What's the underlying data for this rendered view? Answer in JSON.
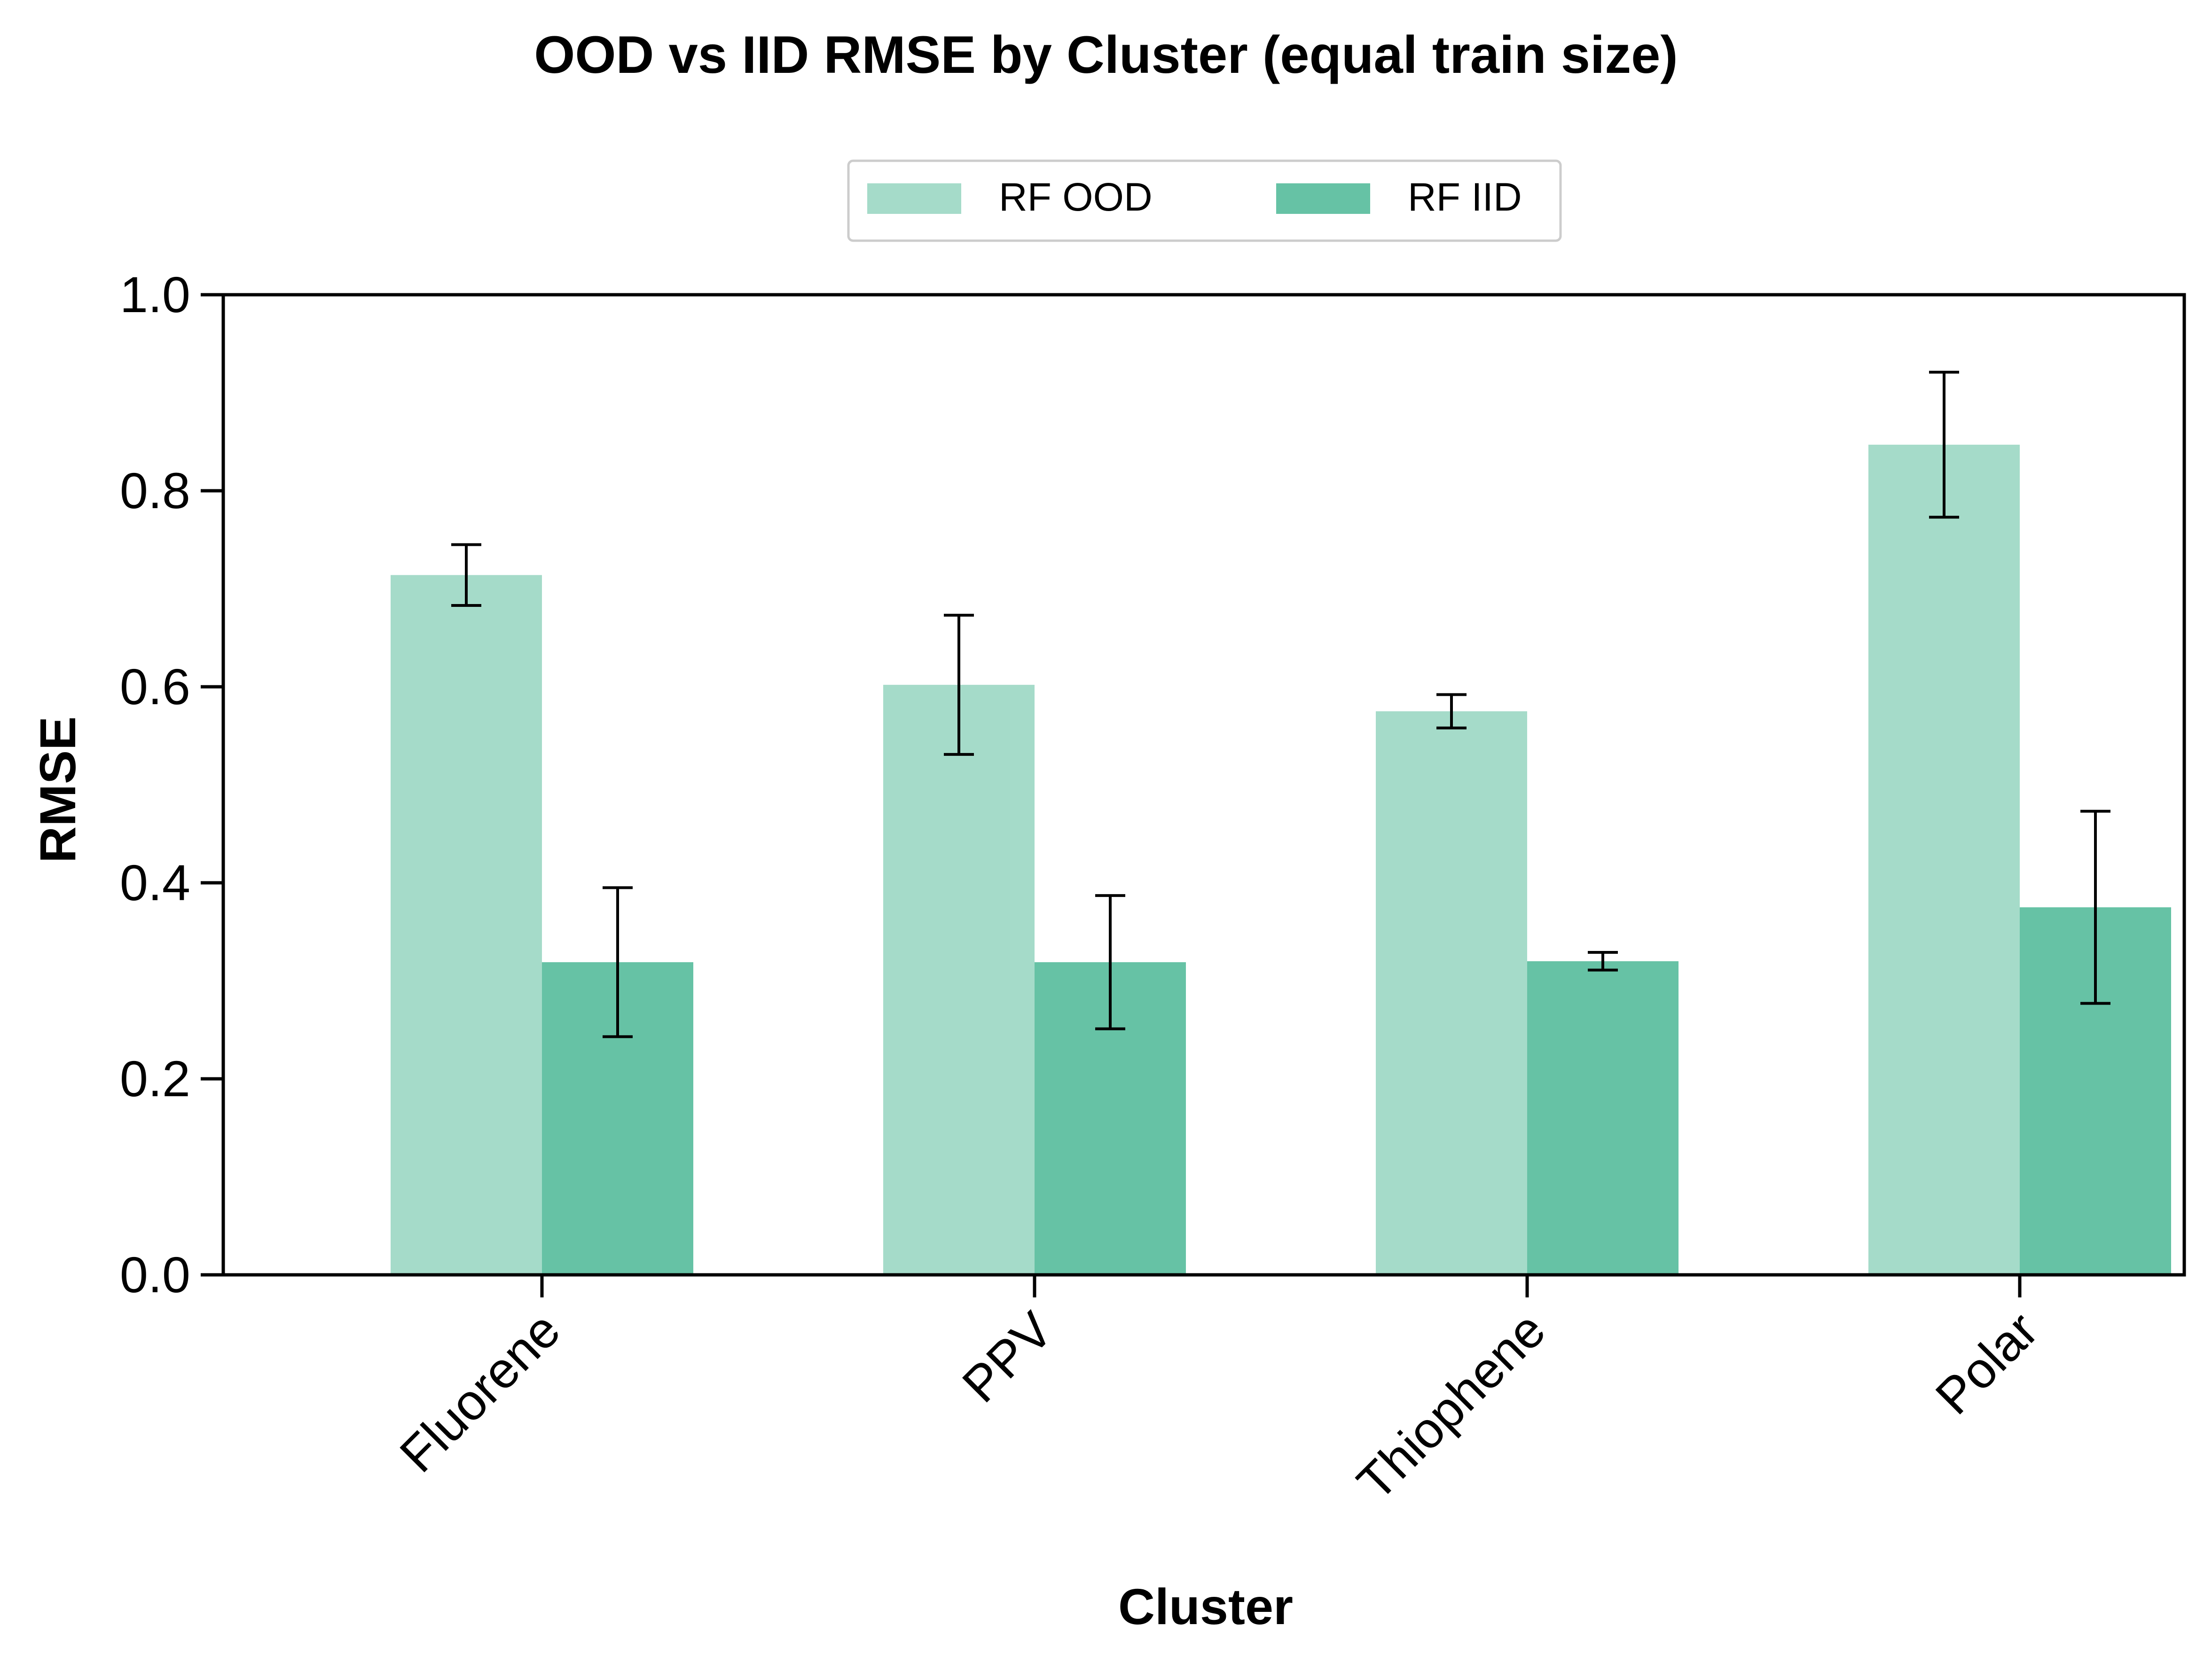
{
  "chart_data": {
    "type": "bar",
    "title": "OOD vs IID RMSE by Cluster (equal train size)",
    "xlabel": "Cluster",
    "ylabel": "RMSE",
    "categories": [
      "Fluorene",
      "PPV",
      "Thiophene",
      "Polar"
    ],
    "series": [
      {
        "name": "RF OOD",
        "color": "#a5dbc9",
        "values": [
          0.714,
          0.602,
          0.575,
          0.847
        ],
        "errors": [
          0.031,
          0.071,
          0.017,
          0.074
        ]
      },
      {
        "name": "RF IID",
        "color": "#66c2a5",
        "values": [
          0.319,
          0.319,
          0.32,
          0.375
        ],
        "errors": [
          0.076,
          0.068,
          0.009,
          0.098
        ]
      }
    ],
    "ylim": [
      0,
      1.0
    ],
    "yticks": [
      "0.0",
      "0.2",
      "0.4",
      "0.6",
      "0.8",
      "1.0"
    ],
    "grid": false,
    "legend": "top-center"
  }
}
